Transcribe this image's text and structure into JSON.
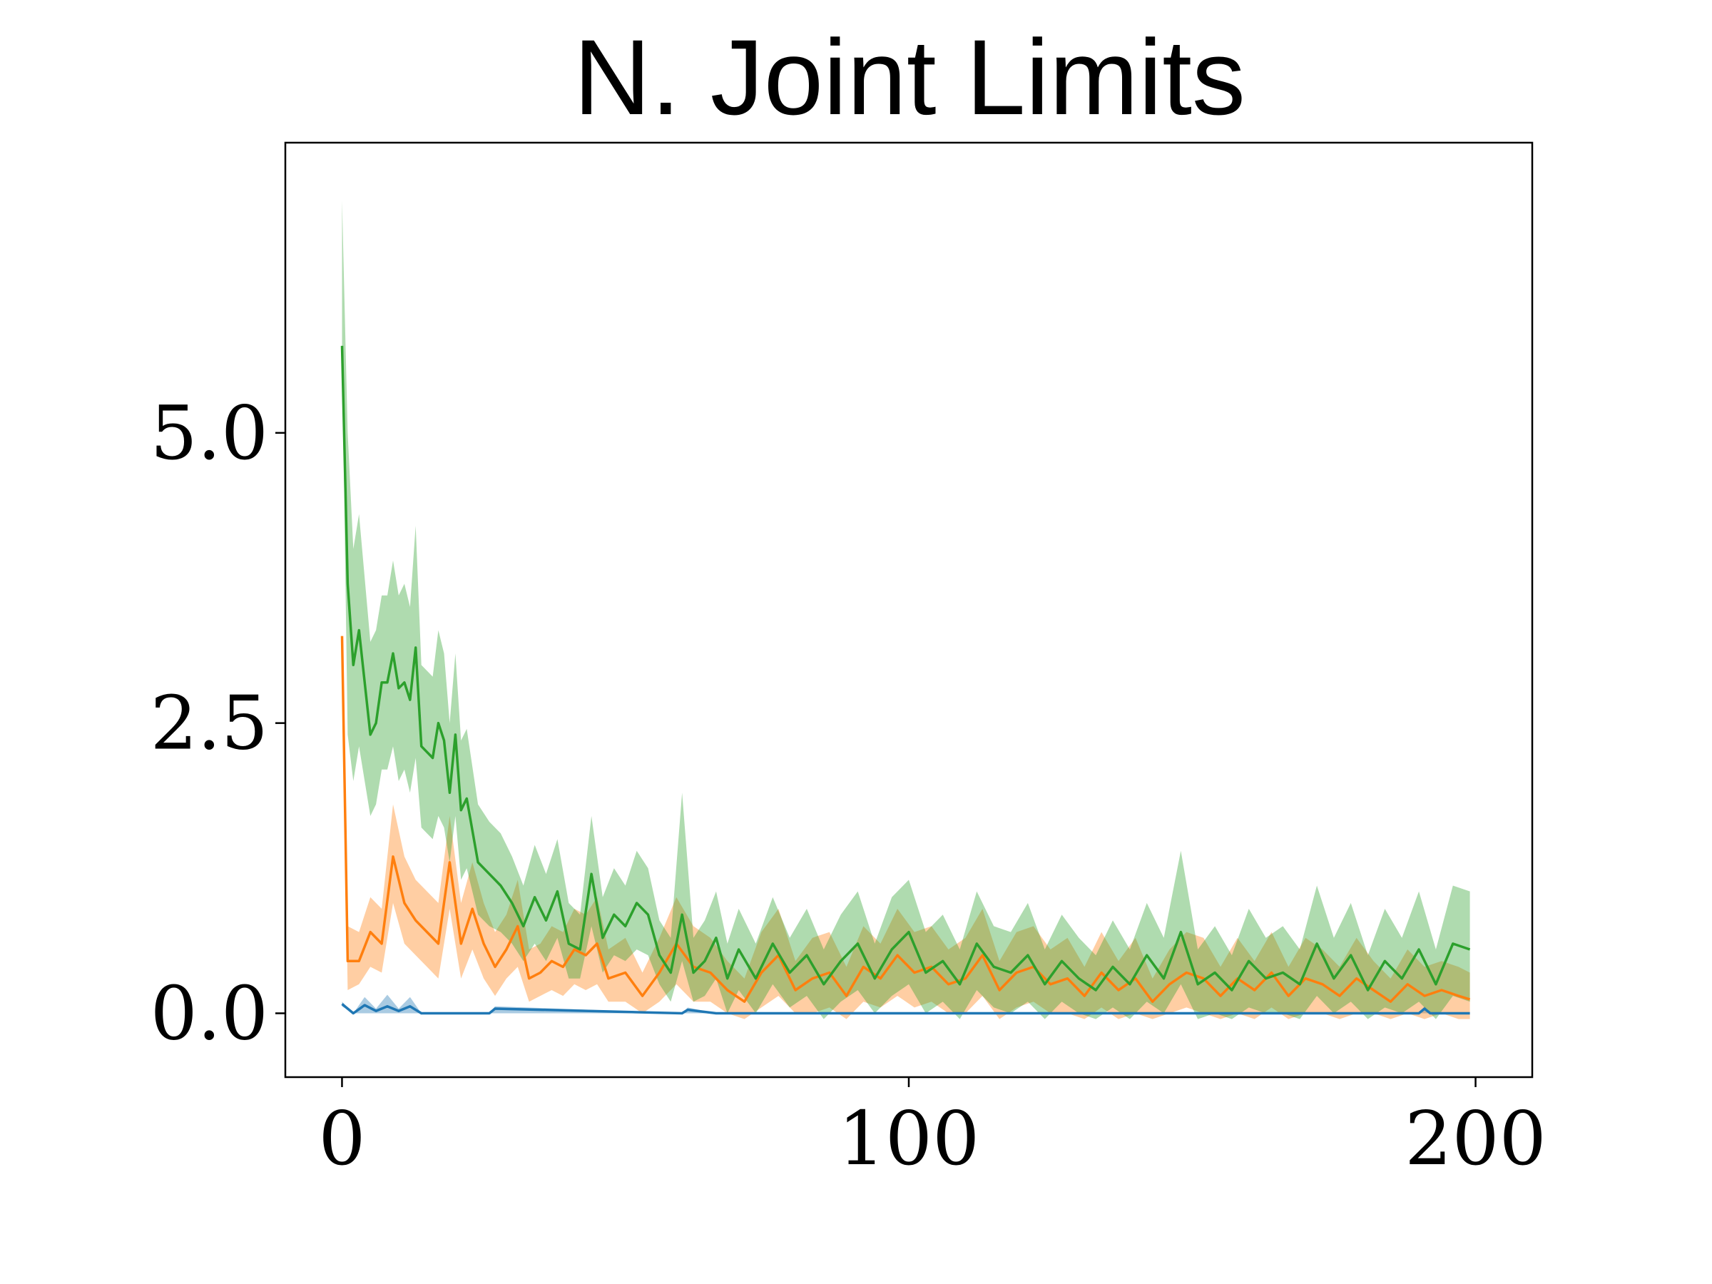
{
  "chart_data": {
    "type": "line",
    "title": "N. Joint Limits",
    "xlabel": "",
    "ylabel": "",
    "xlim": [
      -10,
      210
    ],
    "ylim": [
      -0.55,
      7.5
    ],
    "xticks": [
      0,
      100,
      200
    ],
    "xtick_labels": [
      "0",
      "100",
      "200"
    ],
    "yticks": [
      0.0,
      2.5,
      5.0
    ],
    "ytick_labels": [
      "0.0",
      "2.5",
      "5.0"
    ],
    "grid": false,
    "legend": "none",
    "shaded_band": "mean ± spread",
    "series": [
      {
        "color": "#1f77b4",
        "x": [
          0,
          2,
          4,
          6,
          8,
          10,
          12,
          14,
          18,
          26,
          27,
          60,
          61,
          66,
          70,
          100,
          150,
          190,
          191,
          192,
          199
        ],
        "mean": [
          0.08,
          0.0,
          0.07,
          0.02,
          0.06,
          0.02,
          0.06,
          0.0,
          0.0,
          0.0,
          0.04,
          0.0,
          0.03,
          0.0,
          0.0,
          0.0,
          0.0,
          0.0,
          0.04,
          0.0,
          0.0
        ],
        "lower": [
          0.06,
          0.0,
          0.0,
          0.0,
          0.0,
          0.0,
          0.0,
          0.0,
          0.0,
          0.0,
          0.0,
          0.0,
          0.0,
          0.0,
          0.0,
          0.0,
          0.0,
          0.0,
          0.0,
          0.0,
          0.0
        ],
        "upper": [
          0.1,
          0.0,
          0.14,
          0.04,
          0.16,
          0.04,
          0.14,
          0.0,
          0.0,
          0.0,
          0.06,
          0.0,
          0.05,
          0.0,
          0.0,
          0.0,
          0.0,
          0.0,
          0.06,
          0.0,
          0.0
        ]
      },
      {
        "color": "#ff7f0e",
        "x": [
          0,
          1,
          3,
          5,
          7,
          9,
          11,
          13,
          15,
          17,
          19,
          21,
          23,
          25,
          27,
          29,
          31,
          33,
          35,
          37,
          39,
          41,
          43,
          45,
          47,
          50,
          53,
          56,
          59,
          62,
          65,
          68,
          71,
          74,
          77,
          80,
          83,
          86,
          89,
          92,
          95,
          98,
          101,
          104,
          107,
          110,
          113,
          116,
          119,
          122,
          125,
          128,
          131,
          134,
          137,
          140,
          143,
          146,
          149,
          152,
          155,
          158,
          161,
          164,
          167,
          170,
          173,
          176,
          179,
          182,
          185,
          188,
          191,
          194,
          197,
          199
        ],
        "mean": [
          3.25,
          0.45,
          0.45,
          0.7,
          0.6,
          1.35,
          0.95,
          0.8,
          0.7,
          0.6,
          1.3,
          0.6,
          0.9,
          0.6,
          0.4,
          0.55,
          0.75,
          0.3,
          0.35,
          0.45,
          0.4,
          0.55,
          0.5,
          0.6,
          0.3,
          0.35,
          0.15,
          0.35,
          0.6,
          0.4,
          0.35,
          0.2,
          0.1,
          0.35,
          0.5,
          0.2,
          0.3,
          0.35,
          0.15,
          0.4,
          0.3,
          0.5,
          0.35,
          0.4,
          0.25,
          0.3,
          0.5,
          0.2,
          0.35,
          0.4,
          0.25,
          0.3,
          0.15,
          0.35,
          0.2,
          0.3,
          0.1,
          0.25,
          0.35,
          0.3,
          0.15,
          0.3,
          0.2,
          0.35,
          0.15,
          0.3,
          0.25,
          0.15,
          0.3,
          0.2,
          0.1,
          0.25,
          0.15,
          0.2,
          0.15,
          0.12
        ],
        "lower": [
          3.25,
          0.2,
          0.25,
          0.4,
          0.35,
          0.95,
          0.6,
          0.5,
          0.4,
          0.3,
          0.9,
          0.3,
          0.55,
          0.3,
          0.15,
          0.3,
          0.4,
          0.1,
          0.15,
          0.2,
          0.15,
          0.25,
          0.2,
          0.25,
          0.1,
          0.1,
          0.0,
          0.1,
          0.25,
          0.1,
          0.1,
          0.0,
          -0.05,
          0.05,
          0.15,
          0.0,
          0.0,
          0.05,
          -0.05,
          0.1,
          0.05,
          0.15,
          0.05,
          0.1,
          0.0,
          0.0,
          0.15,
          -0.05,
          0.05,
          0.1,
          0.0,
          0.0,
          -0.05,
          0.05,
          -0.05,
          0.0,
          -0.05,
          0.0,
          0.05,
          0.0,
          -0.05,
          0.0,
          -0.05,
          0.05,
          -0.05,
          0.0,
          0.0,
          -0.05,
          0.0,
          0.0,
          -0.05,
          0.0,
          -0.05,
          0.0,
          -0.05,
          -0.05
        ],
        "upper": [
          3.25,
          0.75,
          0.7,
          1.0,
          0.9,
          1.8,
          1.35,
          1.15,
          1.05,
          0.95,
          1.7,
          0.95,
          1.3,
          0.95,
          0.7,
          0.85,
          1.15,
          0.55,
          0.6,
          0.75,
          0.7,
          0.9,
          0.85,
          1.0,
          0.55,
          0.65,
          0.35,
          0.65,
          1.0,
          0.75,
          0.65,
          0.45,
          0.3,
          0.7,
          0.9,
          0.45,
          0.65,
          0.7,
          0.4,
          0.75,
          0.6,
          0.9,
          0.7,
          0.75,
          0.55,
          0.65,
          0.9,
          0.45,
          0.7,
          0.75,
          0.55,
          0.65,
          0.4,
          0.7,
          0.45,
          0.65,
          0.3,
          0.55,
          0.7,
          0.65,
          0.4,
          0.65,
          0.45,
          0.7,
          0.4,
          0.65,
          0.55,
          0.4,
          0.65,
          0.45,
          0.3,
          0.55,
          0.4,
          0.45,
          0.4,
          0.35
        ]
      },
      {
        "color": "#2ca02c",
        "x": [
          0,
          1,
          2,
          3,
          5,
          6,
          7,
          8,
          9,
          10,
          11,
          12,
          13,
          14,
          15,
          16,
          17,
          18,
          19,
          20,
          21,
          22,
          24,
          26,
          28,
          30,
          32,
          34,
          36,
          38,
          40,
          42,
          44,
          46,
          48,
          50,
          52,
          54,
          56,
          58,
          60,
          62,
          64,
          66,
          68,
          70,
          73,
          76,
          79,
          82,
          85,
          88,
          91,
          94,
          97,
          100,
          103,
          106,
          109,
          112,
          115,
          118,
          121,
          124,
          127,
          130,
          133,
          136,
          139,
          142,
          145,
          148,
          151,
          154,
          157,
          160,
          163,
          166,
          169,
          172,
          175,
          178,
          181,
          184,
          187,
          190,
          193,
          196,
          199
        ],
        "mean": [
          5.75,
          3.7,
          3.0,
          3.3,
          2.4,
          2.5,
          2.85,
          2.85,
          3.1,
          2.8,
          2.85,
          2.7,
          3.15,
          2.3,
          2.25,
          2.2,
          2.5,
          2.35,
          1.9,
          2.4,
          1.75,
          1.85,
          1.3,
          1.2,
          1.1,
          0.95,
          0.75,
          1.0,
          0.8,
          1.05,
          0.6,
          0.55,
          1.2,
          0.65,
          0.85,
          0.75,
          0.95,
          0.85,
          0.5,
          0.35,
          0.85,
          0.35,
          0.45,
          0.65,
          0.3,
          0.55,
          0.3,
          0.6,
          0.35,
          0.5,
          0.25,
          0.45,
          0.6,
          0.3,
          0.55,
          0.7,
          0.35,
          0.45,
          0.25,
          0.6,
          0.4,
          0.35,
          0.5,
          0.25,
          0.45,
          0.3,
          0.2,
          0.4,
          0.25,
          0.5,
          0.3,
          0.7,
          0.25,
          0.35,
          0.2,
          0.45,
          0.3,
          0.35,
          0.25,
          0.6,
          0.3,
          0.5,
          0.2,
          0.45,
          0.3,
          0.55,
          0.25,
          0.6,
          0.55
        ],
        "lower": [
          5.75,
          2.4,
          2.0,
          2.3,
          1.7,
          1.8,
          2.1,
          2.1,
          2.3,
          2.0,
          2.1,
          1.9,
          2.2,
          1.6,
          1.55,
          1.5,
          1.7,
          1.6,
          1.3,
          1.7,
          1.15,
          1.25,
          0.85,
          0.75,
          0.7,
          0.6,
          0.45,
          0.6,
          0.45,
          0.65,
          0.3,
          0.3,
          0.75,
          0.35,
          0.5,
          0.45,
          0.55,
          0.5,
          0.25,
          0.1,
          0.45,
          0.1,
          0.15,
          0.3,
          0.0,
          0.2,
          0.0,
          0.25,
          0.05,
          0.15,
          -0.05,
          0.1,
          0.2,
          0.0,
          0.15,
          0.25,
          0.0,
          0.1,
          -0.05,
          0.2,
          0.05,
          0.0,
          0.1,
          -0.05,
          0.1,
          0.0,
          -0.05,
          0.05,
          -0.05,
          0.1,
          0.0,
          0.25,
          -0.05,
          0.0,
          -0.05,
          0.05,
          0.0,
          0.0,
          -0.05,
          0.15,
          0.0,
          0.1,
          -0.05,
          0.05,
          0.0,
          0.1,
          -0.05,
          0.15,
          0.1
        ],
        "upper": [
          7.0,
          5.0,
          4.0,
          4.3,
          3.2,
          3.3,
          3.6,
          3.6,
          3.9,
          3.6,
          3.7,
          3.5,
          4.2,
          3.0,
          2.95,
          2.9,
          3.3,
          3.1,
          2.5,
          3.1,
          2.35,
          2.45,
          1.8,
          1.65,
          1.55,
          1.35,
          1.1,
          1.45,
          1.2,
          1.5,
          0.95,
          0.85,
          1.7,
          1.0,
          1.25,
          1.1,
          1.4,
          1.25,
          0.8,
          0.65,
          1.9,
          0.65,
          0.8,
          1.05,
          0.6,
          0.9,
          0.6,
          1.0,
          0.65,
          0.9,
          0.55,
          0.85,
          1.05,
          0.6,
          1.0,
          1.15,
          0.7,
          0.85,
          0.55,
          1.05,
          0.75,
          0.7,
          0.95,
          0.55,
          0.85,
          0.65,
          0.5,
          0.8,
          0.55,
          0.95,
          0.65,
          1.4,
          0.55,
          0.75,
          0.5,
          0.9,
          0.65,
          0.75,
          0.55,
          1.1,
          0.65,
          0.95,
          0.5,
          0.9,
          0.65,
          1.05,
          0.55,
          1.1,
          1.05
        ]
      }
    ]
  }
}
